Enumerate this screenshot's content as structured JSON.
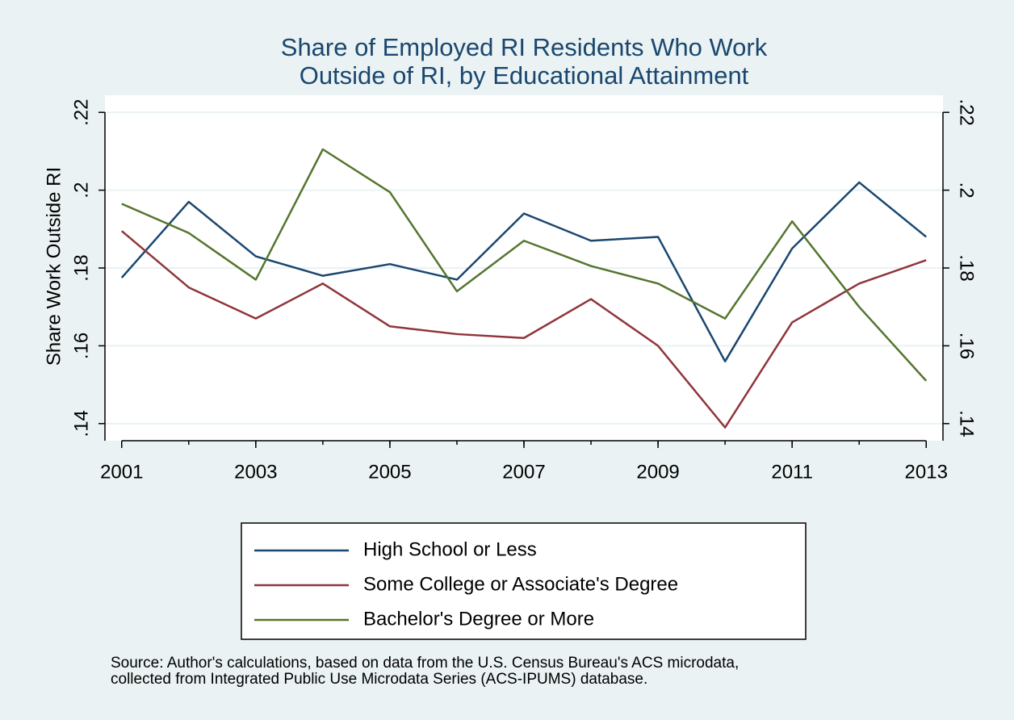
{
  "chart_data": {
    "type": "line",
    "title": [
      "Share of Employed RI Residents Who Work",
      "Outside of RI, by Educational Attainment"
    ],
    "y_label": "Share Work Outside RI",
    "x": [
      2001,
      2002,
      2003,
      2004,
      2005,
      2006,
      2007,
      2008,
      2009,
      2010,
      2011,
      2012,
      2013
    ],
    "series": [
      {
        "name": "High School or Less",
        "color": "#1a476f",
        "values": [
          0.1775,
          0.197,
          0.183,
          0.178,
          0.181,
          0.177,
          0.194,
          0.187,
          0.188,
          0.156,
          0.185,
          0.202,
          0.188
        ]
      },
      {
        "name": "Some College or Associate's Degree",
        "color": "#90353b",
        "values": [
          0.1895,
          0.175,
          0.167,
          0.176,
          0.165,
          0.163,
          0.162,
          0.172,
          0.16,
          0.139,
          0.166,
          0.176,
          0.182
        ]
      },
      {
        "name": "Bachelor's Degree or More",
        "color": "#55752f",
        "values": [
          0.1965,
          0.189,
          0.177,
          0.2105,
          0.1995,
          0.174,
          0.187,
          0.1805,
          0.176,
          0.167,
          0.192,
          0.17,
          0.151
        ]
      }
    ],
    "xlim": [
      2000.75,
      2013.25
    ],
    "xticks": [
      2001,
      2003,
      2005,
      2007,
      2009,
      2011,
      2013
    ],
    "ylim": [
      0.1356,
      0.2244
    ],
    "yticks": [
      {
        "value": 0.14,
        "label": ".14"
      },
      {
        "value": 0.16,
        "label": ".16"
      },
      {
        "value": 0.18,
        "label": ".18"
      },
      {
        "value": 0.2,
        "label": ".2"
      },
      {
        "value": 0.22,
        "label": ".22"
      }
    ],
    "y2lim": [
      0.1356,
      0.2244
    ],
    "y2ticks": [
      {
        "value": 0.14,
        "label": ".14"
      },
      {
        "value": 0.16,
        "label": ".16"
      },
      {
        "value": 0.18,
        "label": ".18"
      },
      {
        "value": 0.2,
        "label": ".2"
      },
      {
        "value": 0.22,
        "label": ".22"
      }
    ],
    "grid": true,
    "legend": "bottom",
    "note": [
      "Source: Author's calculations, based on data from the U.S. Census Bureau's ACS microdata,",
      "collected from Integrated Public Use Microdata Series (ACS-IPUMS) database."
    ]
  }
}
